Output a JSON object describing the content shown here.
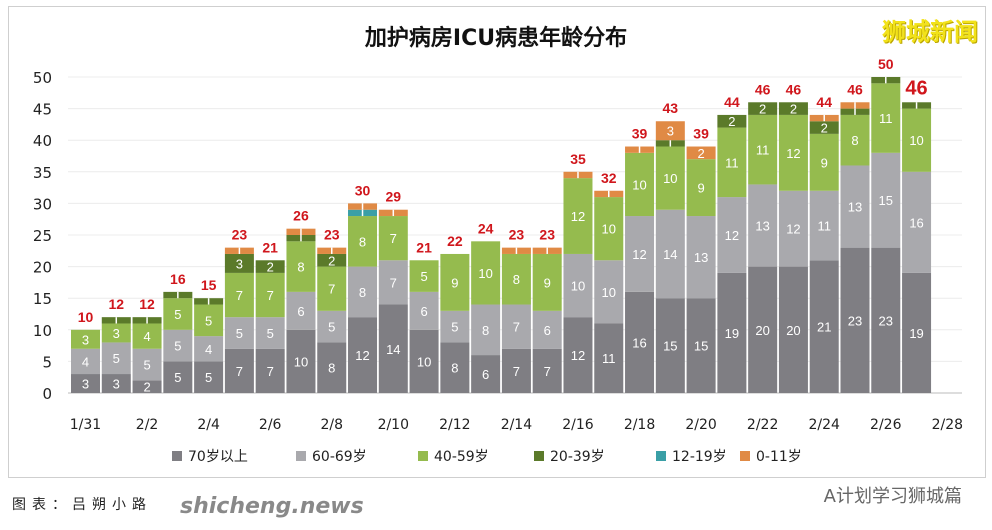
{
  "chart_data": {
    "type": "bar",
    "stacked": true,
    "title": "加护病房ICU病患年龄分布",
    "categories": [
      "1/31",
      "2/1",
      "2/2",
      "2/3",
      "2/4",
      "2/5",
      "2/6",
      "2/7",
      "2/8",
      "2/9",
      "2/10",
      "2/11",
      "2/12",
      "2/13",
      "2/14",
      "2/15",
      "2/16",
      "2/17",
      "2/18",
      "2/19",
      "2/20",
      "2/21",
      "2/22",
      "2/23",
      "2/24",
      "2/25",
      "2/26",
      "2/27"
    ],
    "x_tick_labels": [
      "1/31",
      "2/2",
      "2/4",
      "2/6",
      "2/8",
      "2/10",
      "2/12",
      "2/14",
      "2/16",
      "2/18",
      "2/20",
      "2/22",
      "2/24",
      "2/26",
      "2/28"
    ],
    "ylim": [
      0,
      50
    ],
    "y_ticks": [
      0,
      5,
      10,
      15,
      20,
      25,
      30,
      35,
      40,
      45,
      50
    ],
    "grid": true,
    "legend_position": "bottom",
    "series": [
      {
        "name": "70岁以上",
        "color": "#7f7e83",
        "values": [
          3,
          3,
          2,
          5,
          5,
          7,
          7,
          10,
          8,
          12,
          14,
          10,
          8,
          6,
          7,
          7,
          12,
          11,
          16,
          15,
          15,
          19,
          20,
          20,
          21,
          23,
          23,
          19
        ]
      },
      {
        "name": "60-69岁",
        "color": "#a9a9ad",
        "values": [
          4,
          5,
          5,
          5,
          4,
          5,
          5,
          6,
          5,
          8,
          7,
          6,
          5,
          8,
          7,
          6,
          10,
          10,
          12,
          14,
          13,
          12,
          13,
          12,
          11,
          13,
          15,
          16
        ]
      },
      {
        "name": "40-59岁",
        "color": "#95bb4e",
        "values": [
          3,
          3,
          4,
          5,
          5,
          7,
          7,
          8,
          7,
          8,
          7,
          5,
          9,
          10,
          8,
          9,
          12,
          10,
          10,
          10,
          9,
          11,
          11,
          12,
          9,
          8,
          11,
          10
        ]
      },
      {
        "name": "20-39岁",
        "color": "#5b7a2a",
        "values": [
          0,
          1,
          1,
          1,
          1,
          3,
          2,
          1,
          2,
          0,
          0,
          0,
          0,
          0,
          0,
          0,
          0,
          0,
          0,
          1,
          0,
          2,
          2,
          2,
          2,
          1,
          1,
          1
        ]
      },
      {
        "name": "12-19岁",
        "color": "#3a9fa6",
        "values": [
          0,
          0,
          0,
          0,
          0,
          0,
          0,
          0,
          0,
          1,
          0,
          0,
          0,
          0,
          0,
          0,
          0,
          0,
          0,
          0,
          0,
          0,
          0,
          0,
          0,
          0,
          0,
          0
        ]
      },
      {
        "name": "0-11岁",
        "color": "#e08a45",
        "values": [
          0,
          0,
          0,
          0,
          0,
          1,
          0,
          1,
          1,
          1,
          1,
          0,
          0,
          0,
          1,
          1,
          1,
          1,
          1,
          3,
          2,
          0,
          0,
          0,
          1,
          1,
          0,
          0
        ]
      }
    ],
    "totals": [
      10,
      12,
      12,
      16,
      15,
      23,
      21,
      26,
      23,
      30,
      29,
      21,
      22,
      24,
      23,
      23,
      35,
      32,
      39,
      43,
      39,
      44,
      46,
      46,
      44,
      46,
      50,
      46
    ],
    "total_label_color": "#d0161c"
  },
  "brand": "狮城新闻",
  "credit": "图表：吕朔小路",
  "watermark": "shicheng.news",
  "account": "A计划学习狮城篇"
}
